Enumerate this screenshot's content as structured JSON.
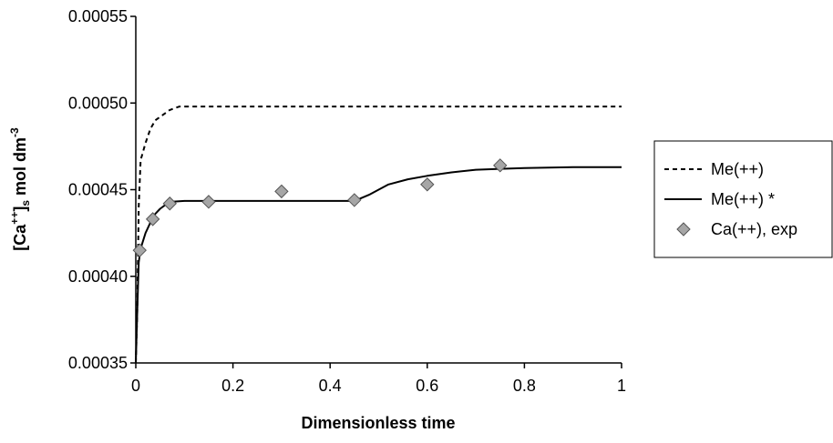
{
  "chart_data": {
    "type": "line",
    "title": "",
    "xlabel": "Dimensionless time",
    "ylabel": {
      "prefix": "[Ca",
      "sup": "++",
      "close": "]",
      "sub": "s",
      "unit": " mol dm",
      "unit_sup": "-3"
    },
    "xlim": [
      0,
      1
    ],
    "ylim": [
      0.00035,
      0.00055
    ],
    "x_ticks": [
      {
        "value": 0,
        "label": "0"
      },
      {
        "value": 0.2,
        "label": "0.2"
      },
      {
        "value": 0.4,
        "label": "0.4"
      },
      {
        "value": 0.6,
        "label": "0.6"
      },
      {
        "value": 0.8,
        "label": "0.8"
      },
      {
        "value": 1,
        "label": "1"
      }
    ],
    "y_ticks": [
      {
        "value": 0.00035,
        "label": "0.00035"
      },
      {
        "value": 0.0004,
        "label": "0.00040"
      },
      {
        "value": 0.00045,
        "label": "0.00045"
      },
      {
        "value": 0.0005,
        "label": "0.00050"
      },
      {
        "value": 0.00055,
        "label": "0.00055"
      }
    ],
    "grid": false,
    "legend_position": "right",
    "series": [
      {
        "name": "Me(++)",
        "style": "dashed",
        "color": "#000000",
        "x": [
          0,
          0.003,
          0.006,
          0.01,
          0.015,
          0.02,
          0.03,
          0.04,
          0.05,
          0.06,
          0.07,
          0.08,
          0.09,
          0.1,
          0.15,
          0.2,
          0.3,
          0.4,
          0.5,
          0.6,
          0.7,
          0.8,
          0.9,
          1.0
        ],
        "y": [
          0.00035,
          0.00038,
          0.00044,
          0.000467,
          0.000472,
          0.000477,
          0.000485,
          0.00049,
          0.000492,
          0.000494,
          0.000496,
          0.000497,
          0.000498,
          0.000498,
          0.000498,
          0.000498,
          0.000498,
          0.000498,
          0.000498,
          0.000498,
          0.000498,
          0.000498,
          0.000498,
          0.000498
        ]
      },
      {
        "name": "Me(++) *",
        "style": "solid",
        "color": "#000000",
        "x": [
          0,
          0.003,
          0.006,
          0.01,
          0.02,
          0.03,
          0.04,
          0.05,
          0.06,
          0.075,
          0.1,
          0.15,
          0.2,
          0.3,
          0.4,
          0.45,
          0.48,
          0.52,
          0.56,
          0.6,
          0.65,
          0.7,
          0.75,
          0.8,
          0.9,
          1.0
        ],
        "y": [
          0.00035,
          0.00038,
          0.000408,
          0.000416,
          0.000425,
          0.000431,
          0.000436,
          0.000439,
          0.000441,
          0.000443,
          0.0004435,
          0.0004435,
          0.0004435,
          0.0004435,
          0.0004435,
          0.0004435,
          0.000447,
          0.000453,
          0.000456,
          0.000458,
          0.00046,
          0.0004615,
          0.000462,
          0.0004625,
          0.000463,
          0.000463
        ]
      },
      {
        "name": "Ca(++), exp",
        "style": "marker",
        "marker": "diamond",
        "color": "#a6a6a6",
        "x": [
          0.008,
          0.035,
          0.07,
          0.15,
          0.3,
          0.45,
          0.6,
          0.75
        ],
        "y": [
          0.000415,
          0.000433,
          0.000442,
          0.000443,
          0.000449,
          0.000444,
          0.000453,
          0.000464
        ]
      }
    ]
  }
}
